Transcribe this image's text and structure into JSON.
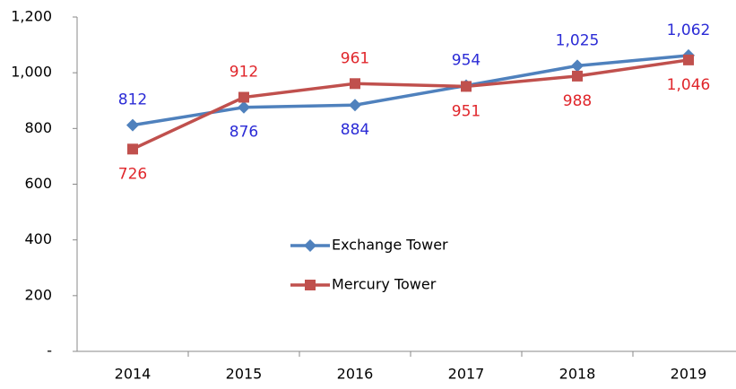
{
  "chart_data": {
    "type": "line",
    "categories": [
      "2014",
      "2015",
      "2016",
      "2017",
      "2018",
      "2019"
    ],
    "series": [
      {
        "name": "Exchange Tower",
        "color": "#4f81bd",
        "label_color": "#2b2bd6",
        "marker": "diamond",
        "values": [
          812,
          876,
          884,
          954,
          1025,
          1062
        ],
        "value_labels": [
          "812",
          "876",
          "884",
          "954",
          "1,025",
          "1,062"
        ]
      },
      {
        "name": "Mercury Tower",
        "color": "#c0504d",
        "label_color": "#e0262b",
        "marker": "square",
        "values": [
          726,
          912,
          961,
          951,
          988,
          1046
        ],
        "value_labels": [
          "726",
          "912",
          "961",
          "951",
          "988",
          "1,046"
        ]
      }
    ],
    "ylim": [
      0,
      1200
    ],
    "yticks": [
      {
        "value": 0,
        "label": "-"
      },
      200,
      400,
      600,
      800,
      {
        "value": 1000,
        "label": "1,000"
      },
      {
        "value": 1200,
        "label": "1,200"
      }
    ],
    "grid": false
  }
}
